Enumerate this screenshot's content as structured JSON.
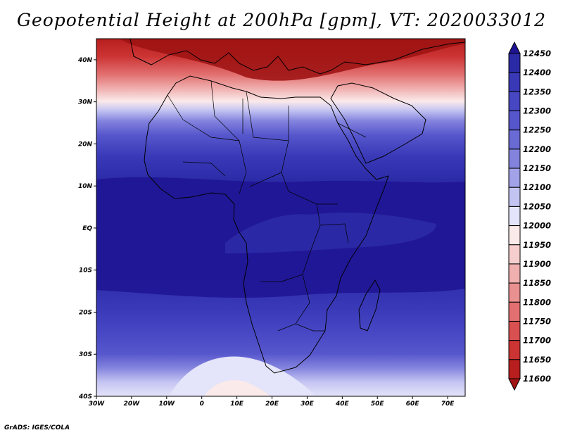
{
  "title": "Geopotential Height at 200hPa [gpm], VT: 2020033012",
  "credit": "GrADS: IGES/COLA",
  "map": {
    "region": "Africa",
    "lon_range": [
      -30,
      75
    ],
    "lat_range": [
      -40,
      45
    ],
    "lat_labels": [
      "40N",
      "30N",
      "20N",
      "10N",
      "EQ",
      "10S",
      "20S",
      "30S",
      "40S"
    ],
    "lat_values": [
      40,
      30,
      20,
      10,
      0,
      -10,
      -20,
      -30,
      -40
    ],
    "lon_labels": [
      "30W",
      "20W",
      "10W",
      "0",
      "10E",
      "20E",
      "30E",
      "40E",
      "50E",
      "60E",
      "70E"
    ],
    "lon_values": [
      -30,
      -20,
      -10,
      0,
      10,
      20,
      30,
      40,
      50,
      60,
      70
    ]
  },
  "colorbar": {
    "levels": [
      "12450",
      "12400",
      "12350",
      "12300",
      "12250",
      "12200",
      "12150",
      "12100",
      "12050",
      "12000",
      "11950",
      "11900",
      "11850",
      "11800",
      "11750",
      "11700",
      "11650",
      "11600"
    ],
    "colors": [
      "#1e1493",
      "#2b2aa6",
      "#3939b8",
      "#4747c4",
      "#5656cc",
      "#6a6ad4",
      "#8383de",
      "#a2a2e8",
      "#c4c4f2",
      "#e4e4fa",
      "#fbeaea",
      "#f6cece",
      "#f0b0b0",
      "#ea9090",
      "#e27070",
      "#d85050",
      "#cc3434",
      "#b81e1e",
      "#a01414"
    ]
  }
}
